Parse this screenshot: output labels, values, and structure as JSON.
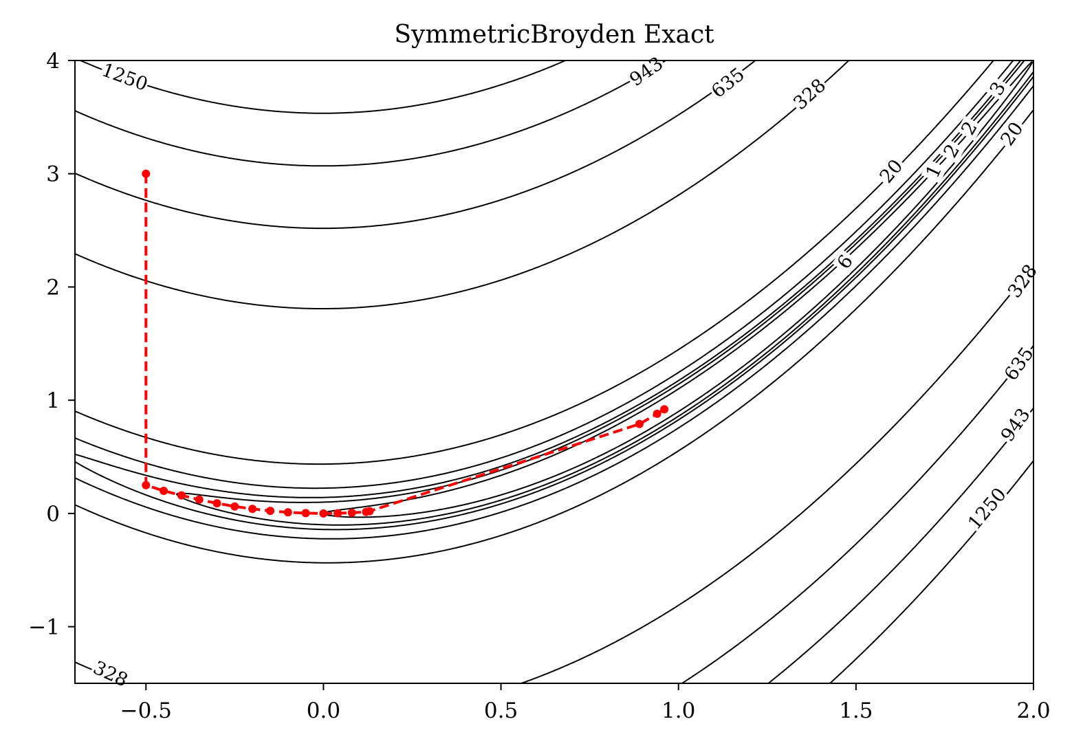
{
  "chart_data": {
    "type": "contour",
    "title": "SymmetricBroyden Exact",
    "xlabel": "",
    "ylabel": "",
    "xlim": [
      -0.7,
      2.0
    ],
    "ylim": [
      -1.5,
      4.0
    ],
    "x_ticks": [
      -0.5,
      0.0,
      0.5,
      1.0,
      1.5,
      2.0
    ],
    "x_tick_labels": [
      "−0.5",
      "0.0",
      "0.5",
      "1.0",
      "1.5",
      "2.0"
    ],
    "y_ticks": [
      -1,
      0,
      1,
      2,
      3,
      4
    ],
    "y_tick_labels": [
      "−1",
      "0",
      "1",
      "2",
      "3",
      "4"
    ],
    "grid": false,
    "function": "rosenbrock",
    "contour_levels": [
      1,
      2,
      3,
      6,
      20,
      328,
      635,
      943,
      1250
    ],
    "contour_labels": [
      {
        "text": "1250",
        "x": -0.56,
        "y": 3.85,
        "angle": 20
      },
      {
        "text": "943",
        "x": 0.91,
        "y": 3.9,
        "angle": -35
      },
      {
        "text": "635",
        "x": 1.14,
        "y": 3.8,
        "angle": -38
      },
      {
        "text": "328",
        "x": 1.37,
        "y": 3.7,
        "angle": -42
      },
      {
        "text": "20",
        "x": 1.6,
        "y": 3.02,
        "angle": -50
      },
      {
        "text": "1",
        "x": 1.72,
        "y": 3.02,
        "angle": -65
      },
      {
        "text": "2",
        "x": 1.77,
        "y": 3.2,
        "angle": -60
      },
      {
        "text": "2",
        "x": 1.82,
        "y": 3.4,
        "angle": -60
      },
      {
        "text": "3",
        "x": 1.9,
        "y": 3.75,
        "angle": -60
      },
      {
        "text": "6",
        "x": 1.47,
        "y": 2.22,
        "angle": -55
      },
      {
        "text": "20",
        "x": 1.94,
        "y": 3.35,
        "angle": -55
      },
      {
        "text": "328",
        "x": 1.97,
        "y": 2.05,
        "angle": -55
      },
      {
        "text": "635",
        "x": 1.96,
        "y": 1.32,
        "angle": -55
      },
      {
        "text": "943",
        "x": 1.95,
        "y": 0.78,
        "angle": -55
      },
      {
        "text": "1250",
        "x": 1.87,
        "y": 0.04,
        "angle": -50
      },
      {
        "text": "328",
        "x": -0.6,
        "y": -1.42,
        "angle": 25
      }
    ],
    "series": [
      {
        "x": [
          -0.5,
          -0.5,
          -0.45,
          -0.4,
          -0.35,
          -0.3,
          -0.25,
          -0.2,
          -0.15,
          -0.1,
          -0.05,
          0.0,
          0.04,
          0.08,
          0.12,
          0.13,
          0.89,
          0.94,
          0.96
        ],
        "y": [
          3.0,
          0.25,
          0.2,
          0.16,
          0.122,
          0.09,
          0.062,
          0.04,
          0.023,
          0.01,
          0.003,
          0.0,
          0.002,
          0.006,
          0.014,
          0.02,
          0.79,
          0.88,
          0.92
        ]
      }
    ],
    "colors": {
      "contour": "#000000",
      "path": "#ff0000",
      "background": "#ffffff"
    }
  }
}
